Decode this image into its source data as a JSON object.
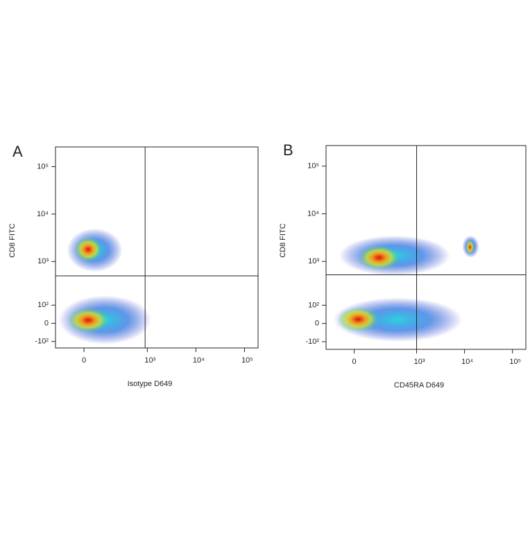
{
  "chart_data": [
    {
      "type": "density",
      "panel": "A",
      "xlabel": "Isotype D649",
      "ylabel": "CD8 FITC",
      "scale": "biexponential",
      "xlim": [
        -180,
        190000
      ],
      "ylim": [
        -150,
        260000
      ],
      "xticks": [
        0,
        {
          "value": 1000,
          "label": "10³"
        },
        {
          "value": 10000,
          "label": "10⁴"
        },
        {
          "value": 100000,
          "label": "10⁵"
        }
      ],
      "yticks": [
        {
          "value": -100,
          "label": "-10²"
        },
        0,
        {
          "value": 100,
          "label": "10²"
        },
        {
          "value": 1000,
          "label": "10³"
        },
        {
          "value": 10000,
          "label": "10⁴"
        },
        {
          "value": 100000,
          "label": "10⁵"
        }
      ],
      "gates": {
        "x": 900,
        "y": 495
      },
      "populations": [
        {
          "x": [
            -150,
            1200
          ],
          "y": [
            -120,
            180
          ],
          "peak": [
            20,
            15
          ]
        },
        {
          "x": [
            -90,
            300
          ],
          "y": [
            600,
            5000
          ],
          "peak": [
            20,
            1800
          ]
        }
      ]
    },
    {
      "type": "density",
      "panel": "B",
      "xlabel": "CD45RA D649",
      "ylabel": "CD8 FITC",
      "scale": "biexponential",
      "xlim": [
        -180,
        190000
      ],
      "ylim": [
        -160,
        270000
      ],
      "xticks": [
        0,
        {
          "value": 1000,
          "label": "10³"
        },
        {
          "value": 10000,
          "label": "10⁴"
        },
        {
          "value": 100000,
          "label": "10⁵"
        }
      ],
      "yticks": [
        {
          "value": -100,
          "label": "-10²"
        },
        0,
        {
          "value": 100,
          "label": "10²"
        },
        {
          "value": 1000,
          "label": "10³"
        },
        {
          "value": 10000,
          "label": "10⁴"
        },
        {
          "value": 100000,
          "label": "10⁵"
        }
      ],
      "gates": {
        "x": 1000,
        "y": 520
      },
      "populations": [
        {
          "x": [
            -120,
            9000
          ],
          "y": [
            -100,
            160
          ],
          "peak": [
            20,
            20
          ]
        },
        {
          "x": [
            -80,
            5000
          ],
          "y": [
            500,
            3500
          ],
          "peak": [
            150,
            1200
          ]
        },
        {
          "x": [
            9000,
            20000
          ],
          "y": [
            1200,
            3500
          ],
          "peak": [
            13000,
            2000
          ]
        }
      ]
    }
  ]
}
